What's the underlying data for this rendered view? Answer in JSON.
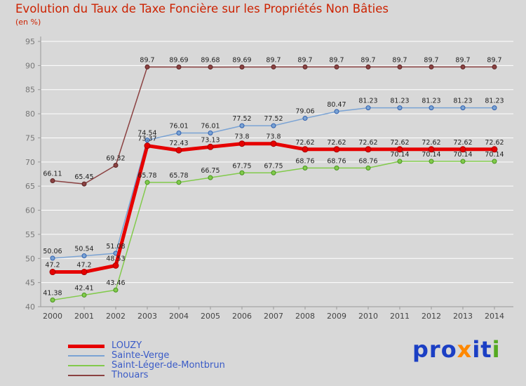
{
  "colors": {
    "background": "#d8d8d8",
    "title": "#cc2200",
    "legend_text": "#3a5bc7",
    "value_labels": "#222222",
    "axis": "#999999",
    "grid": "#ffffff",
    "y_tick_text": "#777777",
    "x_tick_text": "#444444"
  },
  "chart_data": {
    "type": "line",
    "title": "Evolution du Taux de Taxe Foncière sur les Propriétés Non Bâties",
    "subtitle": "(en %)",
    "x": [
      2000,
      2001,
      2002,
      2003,
      2004,
      2005,
      2006,
      2007,
      2008,
      2009,
      2010,
      2011,
      2012,
      2013,
      2014
    ],
    "ylim": [
      40,
      95
    ],
    "ytick_step": 5,
    "grid": true,
    "legend_position": "bottom-left",
    "series": [
      {
        "name": "LOUZY",
        "color": "#e60000",
        "line_width": 5,
        "marker_radius": 4,
        "marker_fill": "#e60000",
        "marker_edge": "#a80000",
        "values": [
          47.2,
          47.2,
          48.53,
          73.37,
          72.43,
          73.13,
          73.8,
          73.8,
          72.62,
          72.62,
          72.62,
          72.62,
          72.62,
          72.62,
          72.62
        ]
      },
      {
        "name": "Sainte-Verge",
        "color": "#7aa3d4",
        "line_width": 1.5,
        "marker_radius": 3,
        "marker_fill": "#7aa3d4",
        "marker_edge": "#2f5fae",
        "values": [
          50.06,
          50.54,
          51.08,
          74.54,
          76.01,
          76.01,
          77.52,
          77.52,
          79.06,
          80.47,
          81.23,
          81.23,
          81.23,
          81.23,
          81.23
        ]
      },
      {
        "name": "Saint-Léger-de-Montbrun",
        "color": "#82ca4c",
        "line_width": 1.5,
        "marker_radius": 3,
        "marker_fill": "#82ca4c",
        "marker_edge": "#46941d",
        "values": [
          41.38,
          42.41,
          43.46,
          65.78,
          65.78,
          66.75,
          67.75,
          67.75,
          68.76,
          68.76,
          68.76,
          70.14,
          70.14,
          70.14,
          70.14
        ]
      },
      {
        "name": "Thouars",
        "color": "#8b4242",
        "line_width": 1.5,
        "marker_radius": 3,
        "marker_fill": "#8b4242",
        "marker_edge": "#5a2424",
        "values": [
          66.11,
          65.45,
          69.32,
          89.7,
          89.69,
          89.68,
          89.69,
          89.7,
          89.7,
          89.7,
          89.7,
          89.7,
          89.7,
          89.7,
          89.7
        ]
      }
    ]
  },
  "logo": {
    "name": "proxiti",
    "segments": [
      {
        "text": "pro",
        "color": "#1b3fc4"
      },
      {
        "text": "x",
        "color": "#ff8800"
      },
      {
        "text": "it",
        "color": "#1b3fc4"
      },
      {
        "text": "i",
        "color": "#55aa22"
      }
    ]
  }
}
